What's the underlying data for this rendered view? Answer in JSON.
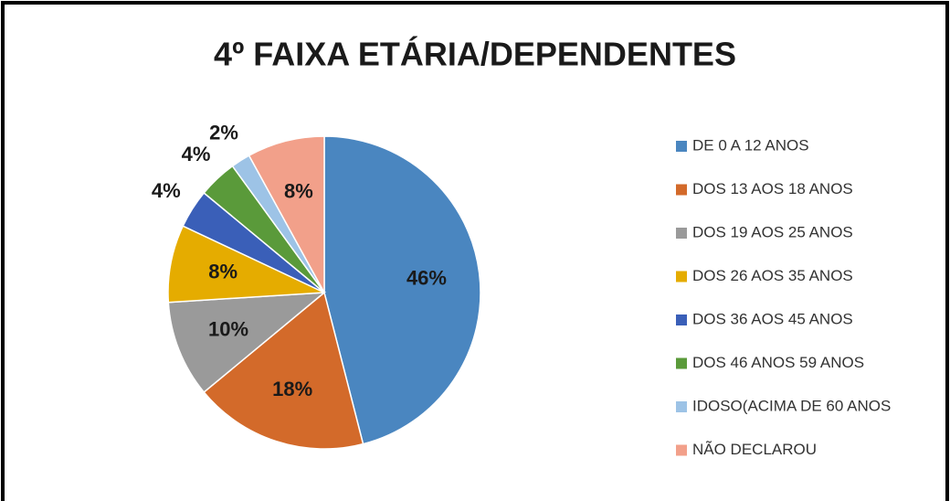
{
  "chart_data": {
    "type": "pie",
    "title": "4º FAIXA ETÁRIA/DEPENDENTES",
    "categories": [
      "DE 0 A 12 ANOS",
      "DOS 13 AOS 18 ANOS",
      "DOS 19 AOS 25 ANOS",
      "DOS 26 AOS 35 ANOS",
      "DOS 36 AOS 45 ANOS",
      "DOS 46 ANOS 59 ANOS",
      "IDOSO(ACIMA DE 60 ANOS",
      "NÃO DECLAROU"
    ],
    "values": [
      46,
      18,
      10,
      8,
      4,
      4,
      2,
      8
    ],
    "value_labels": [
      "46%",
      "18%",
      "10%",
      "8%",
      "4%",
      "4%",
      "2%",
      "8%"
    ],
    "colors": [
      "#4a86c0",
      "#d36a2a",
      "#9a9a9a",
      "#e5ac00",
      "#3a5fb8",
      "#5a9a3a",
      "#9dc3e6",
      "#f2a08a"
    ],
    "legend": "right"
  }
}
